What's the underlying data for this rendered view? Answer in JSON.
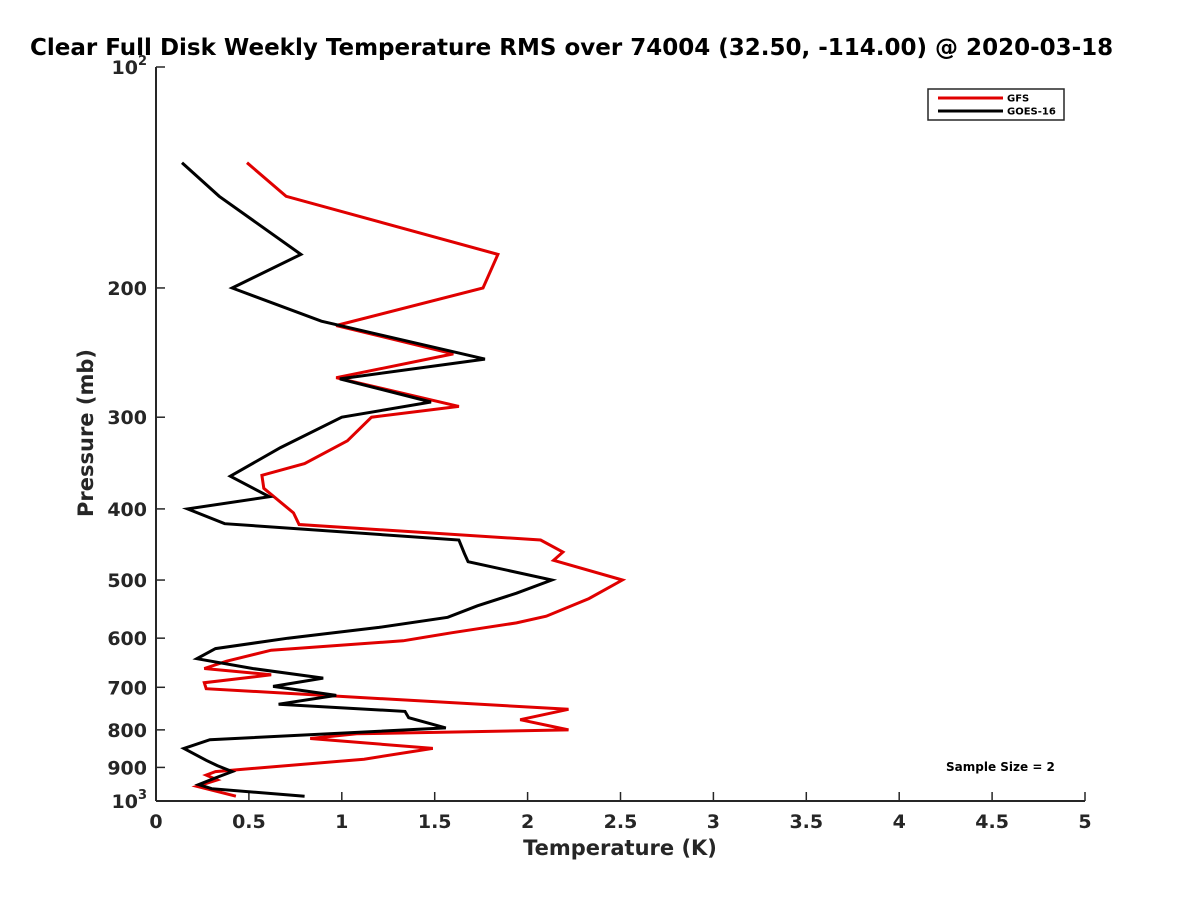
{
  "chart_data": {
    "type": "line",
    "title": "Clear Full Disk Weekly Temperature RMS over 74004 (32.50, -114.00) @ 2020-03-18",
    "xlabel": "Temperature (K)",
    "ylabel": "Pressure (mb)",
    "xlim": [
      0,
      5
    ],
    "ylim": [
      100,
      1000
    ],
    "y_scale": "log",
    "y_reversed": true,
    "x_ticks": [
      "0",
      "0.5",
      "1",
      "1.5",
      "2",
      "2.5",
      "3",
      "3.5",
      "4",
      "4.5",
      "5"
    ],
    "y_ticks": [
      {
        "value": 100,
        "base": "10",
        "exp": "2"
      },
      {
        "value": 200,
        "label": "200"
      },
      {
        "value": 300,
        "label": "300"
      },
      {
        "value": 400,
        "label": "400"
      },
      {
        "value": 500,
        "label": "500"
      },
      {
        "value": 600,
        "label": "600"
      },
      {
        "value": 700,
        "label": "700"
      },
      {
        "value": 800,
        "label": "800"
      },
      {
        "value": 900,
        "label": "900"
      },
      {
        "value": 1000,
        "base": "10",
        "exp": "3"
      }
    ],
    "legend_position": "top-right",
    "grid": false,
    "annotation": "Sample Size = 2",
    "series": [
      {
        "name": "GFS",
        "color": "#e00000",
        "points": [
          [
            0.49,
            135
          ],
          [
            0.7,
            150
          ],
          [
            1.84,
            180
          ],
          [
            1.76,
            200
          ],
          [
            0.97,
            225
          ],
          [
            1.6,
            246
          ],
          [
            0.97,
            265
          ],
          [
            1.63,
            290
          ],
          [
            1.16,
            300
          ],
          [
            1.03,
            323
          ],
          [
            0.8,
            347
          ],
          [
            0.57,
            360
          ],
          [
            0.58,
            375
          ],
          [
            0.74,
            405
          ],
          [
            0.77,
            420
          ],
          [
            2.07,
            441
          ],
          [
            2.19,
            458
          ],
          [
            2.14,
            470
          ],
          [
            2.51,
            500
          ],
          [
            2.33,
            530
          ],
          [
            2.1,
            560
          ],
          [
            1.94,
            572
          ],
          [
            1.59,
            590
          ],
          [
            1.33,
            605
          ],
          [
            0.62,
            623
          ],
          [
            0.38,
            645
          ],
          [
            0.26,
            660
          ],
          [
            0.62,
            673
          ],
          [
            0.26,
            690
          ],
          [
            0.27,
            703
          ],
          [
            2.22,
            750
          ],
          [
            1.96,
            775
          ],
          [
            2.22,
            800
          ],
          [
            1.08,
            810
          ],
          [
            0.83,
            822
          ],
          [
            1.49,
            848
          ],
          [
            1.12,
            877
          ],
          [
            0.32,
            912
          ],
          [
            0.27,
            922
          ],
          [
            0.33,
            936
          ],
          [
            0.22,
            955
          ],
          [
            0.43,
            985
          ]
        ]
      },
      {
        "name": "GOES-16",
        "color": "#000000",
        "points": [
          [
            0.14,
            135
          ],
          [
            0.34,
            150
          ],
          [
            0.78,
            180
          ],
          [
            0.41,
            200
          ],
          [
            0.89,
            222
          ],
          [
            1.77,
            250
          ],
          [
            0.99,
            266
          ],
          [
            1.48,
            286
          ],
          [
            1.0,
            300
          ],
          [
            0.67,
            330
          ],
          [
            0.4,
            361
          ],
          [
            0.61,
            385
          ],
          [
            0.17,
            400
          ],
          [
            0.37,
            419
          ],
          [
            1.63,
            441
          ],
          [
            1.66,
            460
          ],
          [
            1.68,
            472
          ],
          [
            2.13,
            500
          ],
          [
            1.94,
            521
          ],
          [
            1.73,
            542
          ],
          [
            1.57,
            562
          ],
          [
            1.2,
            580
          ],
          [
            0.71,
            600
          ],
          [
            0.32,
            620
          ],
          [
            0.22,
            640
          ],
          [
            0.52,
            660
          ],
          [
            0.9,
            680
          ],
          [
            0.63,
            698
          ],
          [
            0.97,
            718
          ],
          [
            0.66,
            738
          ],
          [
            1.34,
            755
          ],
          [
            1.36,
            770
          ],
          [
            1.56,
            795
          ],
          [
            0.29,
            825
          ],
          [
            0.15,
            848
          ],
          [
            0.27,
            880
          ],
          [
            0.33,
            895
          ],
          [
            0.41,
            912
          ],
          [
            0.32,
            930
          ],
          [
            0.23,
            950
          ],
          [
            0.3,
            962
          ],
          [
            0.8,
            985
          ]
        ]
      }
    ]
  }
}
